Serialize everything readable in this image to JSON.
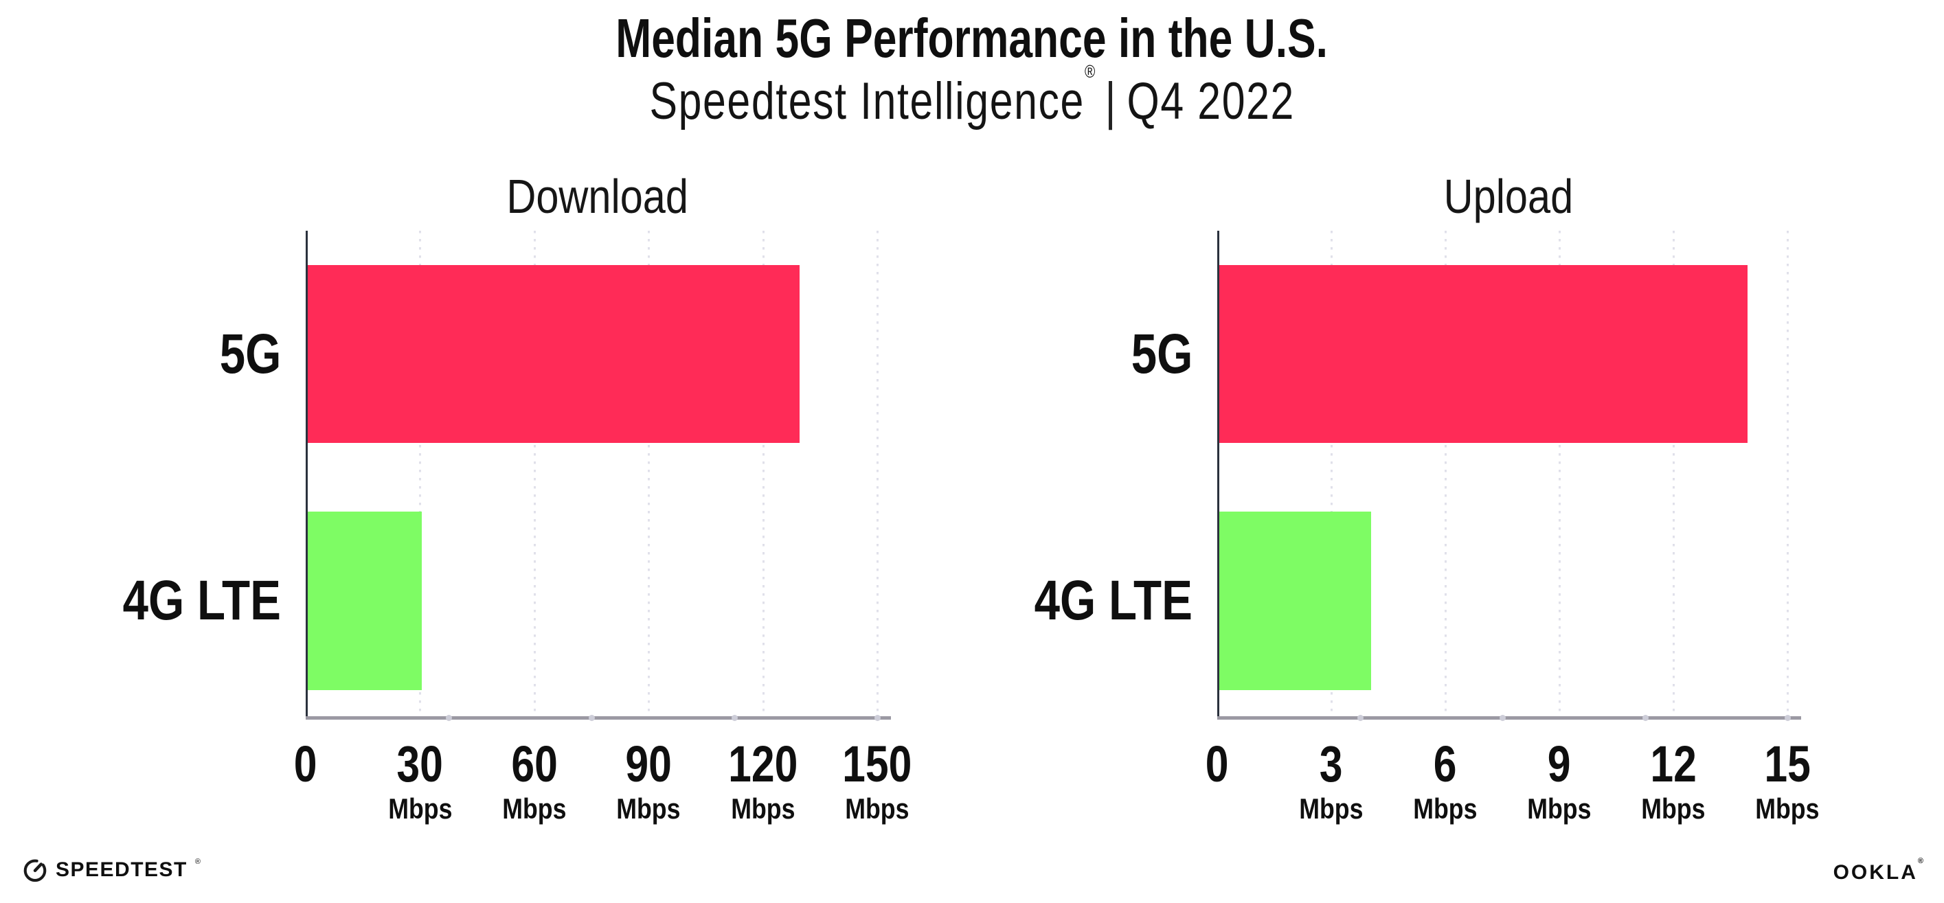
{
  "header": {
    "title": "Median 5G Performance in the U.S.",
    "subtitle_brand": "Speedtest Intelligence",
    "subtitle_reg": "®",
    "subtitle_divider": "|",
    "subtitle_period": "Q4 2022"
  },
  "chart_data": [
    {
      "type": "bar",
      "orientation": "horizontal",
      "title": "Download",
      "categories": [
        "5G",
        "4G LTE"
      ],
      "values": [
        129,
        30
      ],
      "unit": "Mbps",
      "xlim": [
        0,
        150
      ],
      "xticks": [
        0,
        30,
        60,
        90,
        120,
        150
      ],
      "bar_colors": [
        "#FF2B57",
        "#7EFC64"
      ],
      "grid": "dotted-vertical-on"
    },
    {
      "type": "bar",
      "orientation": "horizontal",
      "title": "Upload",
      "categories": [
        "5G",
        "4G LTE"
      ],
      "values": [
        13.9,
        4
      ],
      "unit": "Mbps",
      "xlim": [
        0,
        15
      ],
      "xticks": [
        0,
        3,
        6,
        9,
        12,
        15
      ],
      "bar_colors": [
        "#FF2B57",
        "#7EFC64"
      ],
      "grid": "dotted-vertical-on"
    }
  ],
  "footer": {
    "speedtest_text": "SPEEDTEST",
    "speedtest_reg": "®",
    "ookla_text": "OOKLA",
    "ookla_reg": "®"
  },
  "colors": {
    "bar_5g": "#FF2B57",
    "bar_4g_lte": "#7EFC64",
    "y_axis": "#2B323E",
    "x_axis": "#9B99A3",
    "gridline": "#E0E0EA",
    "text": "#0F0F0F",
    "background": "#FFFFFF"
  }
}
